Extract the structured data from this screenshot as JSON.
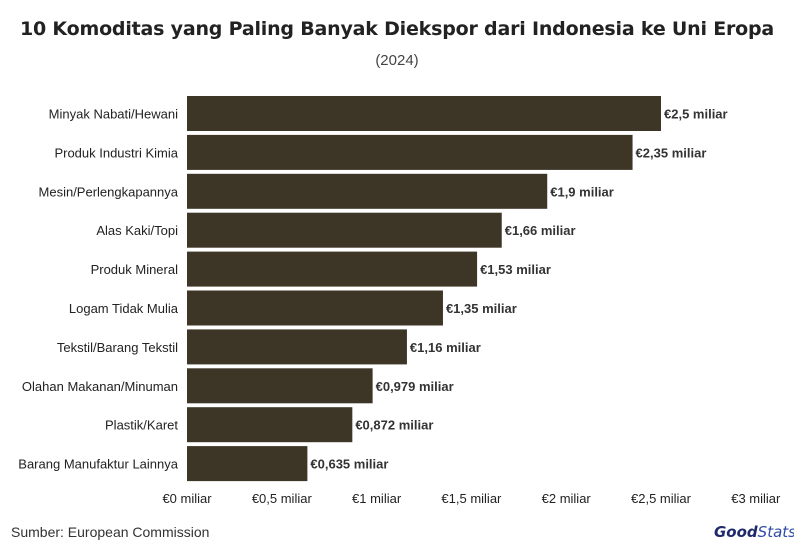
{
  "chart_data": {
    "type": "bar",
    "orientation": "horizontal",
    "title": "10 Komoditas yang Paling Banyak Diekspor dari Indonesia ke Uni Eropa",
    "subtitle": "(2024)",
    "categories": [
      "Minyak Nabati/Hewani",
      "Produk Industri Kimia",
      "Mesin/Perlengkapannya",
      "Alas Kaki/Topi",
      "Produk Mineral",
      "Logam Tidak Mulia",
      "Tekstil/Barang Tekstil",
      "Olahan Makanan/Minuman",
      "Plastik/Karet",
      "Barang Manufaktur Lainnya"
    ],
    "values": [
      2.5,
      2.35,
      1.9,
      1.66,
      1.53,
      1.35,
      1.16,
      0.979,
      0.872,
      0.635
    ],
    "value_labels": [
      "€2,5 miliar",
      "€2,35 miliar",
      "€1,9 miliar",
      "€1,66 miliar",
      "€1,53 miliar",
      "€1,35 miliar",
      "€1,16 miliar",
      "€0,979 miliar",
      "€0,872 miliar",
      "€0,635 miliar"
    ],
    "xticks": [
      0,
      0.5,
      1,
      1.5,
      2,
      2.5,
      3
    ],
    "xtick_labels": [
      "€0 miliar",
      "€0,5 miliar",
      "€1 miliar",
      "€1,5 miliar",
      "€2 miliar",
      "€2,5 miliar",
      "€3 miliar"
    ],
    "xlim": [
      0,
      3
    ],
    "grid": false,
    "bar_color": "#3d3526",
    "xlabel": "",
    "ylabel": ""
  },
  "footer": {
    "source": "Sumber: European Commission",
    "logo_good": "Good",
    "logo_stats": "Stats"
  }
}
